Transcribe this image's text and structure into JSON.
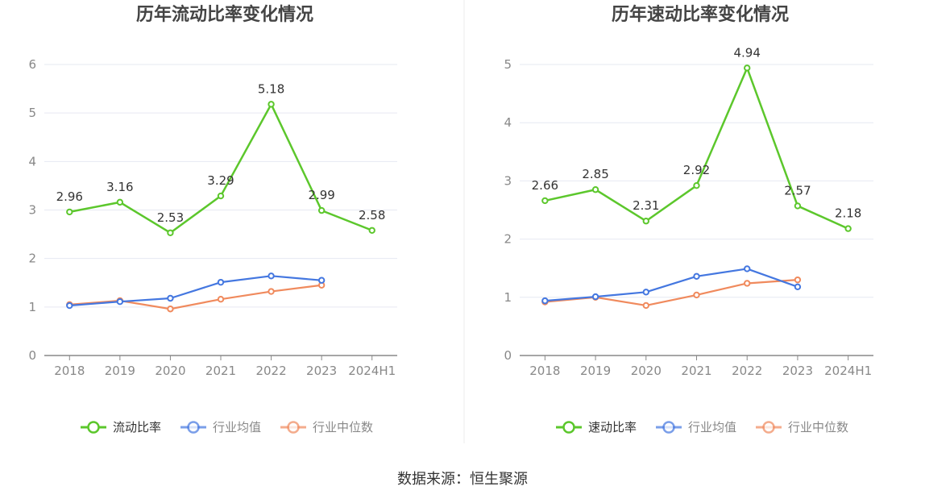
{
  "source_text": "数据来源：恒生聚源",
  "chart_data": [
    {
      "type": "line",
      "title": "历年流动比率变化情况",
      "categories": [
        "2018",
        "2019",
        "2020",
        "2021",
        "2022",
        "2023",
        "2024H1"
      ],
      "ylim": [
        0,
        6
      ],
      "yticks": [
        0,
        1,
        2,
        3,
        4,
        5,
        6
      ],
      "grid": true,
      "legend_position": "bottom",
      "series": [
        {
          "name": "流动比率",
          "color": "#5cc72c",
          "labels": true,
          "values": [
            2.96,
            3.16,
            2.53,
            3.29,
            5.18,
            2.99,
            2.58
          ]
        },
        {
          "name": "行业均值",
          "color": "#4477e0",
          "labels": false,
          "values": [
            1.03,
            1.11,
            1.18,
            1.51,
            1.64,
            1.55,
            null
          ]
        },
        {
          "name": "行业中位数",
          "color": "#f08a5d",
          "labels": false,
          "values": [
            1.05,
            1.13,
            0.96,
            1.16,
            1.32,
            1.45,
            null
          ]
        }
      ]
    },
    {
      "type": "line",
      "title": "历年速动比率变化情况",
      "categories": [
        "2018",
        "2019",
        "2020",
        "2021",
        "2022",
        "2023",
        "2024H1"
      ],
      "ylim": [
        0,
        5
      ],
      "yticks": [
        0,
        1,
        2,
        3,
        4,
        5
      ],
      "grid": true,
      "legend_position": "bottom",
      "series": [
        {
          "name": "速动比率",
          "color": "#5cc72c",
          "labels": true,
          "values": [
            2.66,
            2.85,
            2.31,
            2.92,
            4.94,
            2.57,
            2.18
          ]
        },
        {
          "name": "行业均值",
          "color": "#4477e0",
          "labels": false,
          "values": [
            0.94,
            1.01,
            1.09,
            1.36,
            1.49,
            1.18,
            null
          ]
        },
        {
          "name": "行业中位数",
          "color": "#f08a5d",
          "labels": false,
          "values": [
            0.92,
            1.0,
            0.86,
            1.04,
            1.24,
            1.3,
            null
          ]
        }
      ]
    }
  ]
}
